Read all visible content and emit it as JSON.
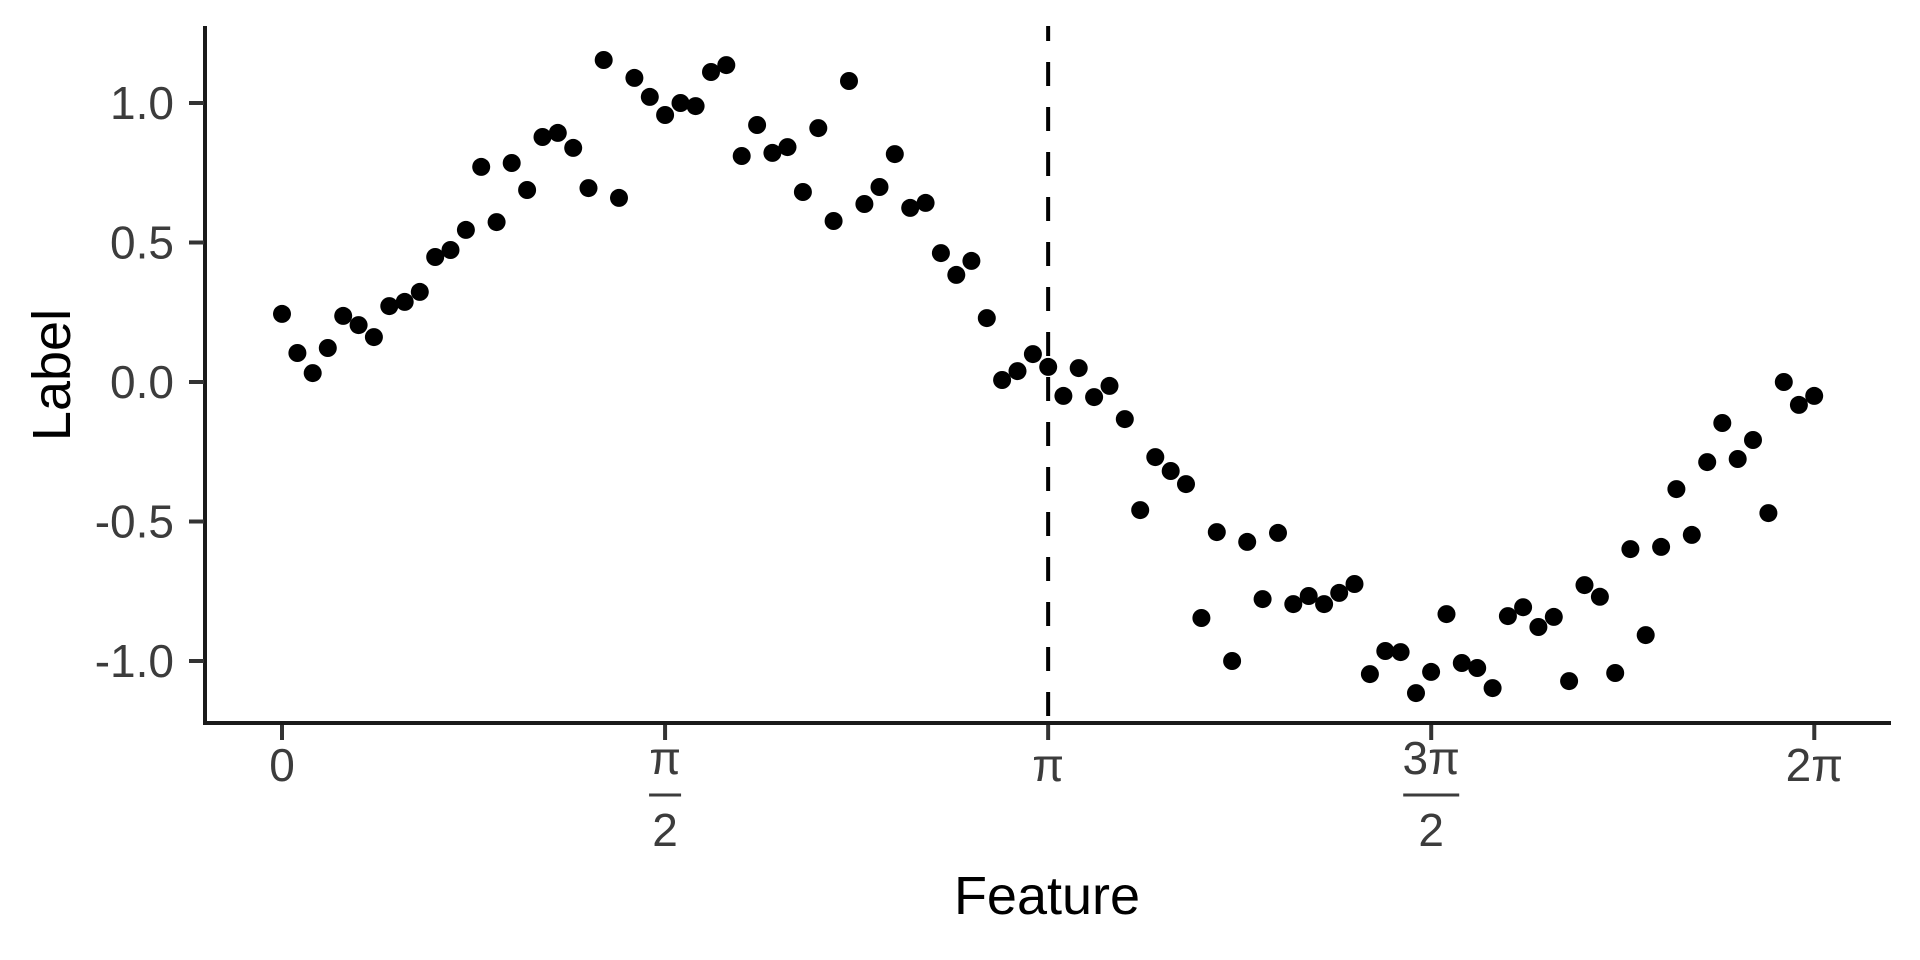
{
  "figure": {
    "background": "#ffffff"
  },
  "chart_data": {
    "type": "scatter",
    "title": "",
    "xlabel": "Feature",
    "ylabel": "Label",
    "xlim": [
      -0.32,
      6.6
    ],
    "ylim": [
      -1.23,
      1.27
    ],
    "grid": false,
    "legend": "none",
    "point_color": "#000000",
    "axis_line_color": "#1a1a1a",
    "tick_color": "#333333",
    "tick_text_color": "#3c3c3c",
    "reference_line": {
      "x": 3.1416,
      "style": "dashed",
      "color": "#000000",
      "at_label": "π"
    },
    "x_ticks": [
      {
        "value": 0,
        "label": "0"
      },
      {
        "value": 1.5708,
        "label": "π/2",
        "num": "π",
        "den": "2"
      },
      {
        "value": 3.1416,
        "label": "π"
      },
      {
        "value": 4.7124,
        "label": "3π/2",
        "num": "3π",
        "den": "2"
      },
      {
        "value": 6.2832,
        "label": "2π"
      }
    ],
    "y_ticks": [
      {
        "value": 1.0,
        "label": "1.0"
      },
      {
        "value": 0.5,
        "label": "0.5"
      },
      {
        "value": 0.0,
        "label": "0.0"
      },
      {
        "value": -0.5,
        "label": "-0.5"
      },
      {
        "value": -1.0,
        "label": "-1.0"
      }
    ],
    "points": [
      [
        0.0,
        0.244
      ],
      [
        0.063,
        0.104
      ],
      [
        0.126,
        0.032
      ],
      [
        0.188,
        0.122
      ],
      [
        0.251,
        0.237
      ],
      [
        0.314,
        0.204
      ],
      [
        0.377,
        0.161
      ],
      [
        0.44,
        0.272
      ],
      [
        0.503,
        0.287
      ],
      [
        0.565,
        0.323
      ],
      [
        0.628,
        0.448
      ],
      [
        0.691,
        0.473
      ],
      [
        0.754,
        0.545
      ],
      [
        0.817,
        0.771
      ],
      [
        0.88,
        0.573
      ],
      [
        0.942,
        0.785
      ],
      [
        1.005,
        0.688
      ],
      [
        1.068,
        0.878
      ],
      [
        1.131,
        0.893
      ],
      [
        1.194,
        0.839
      ],
      [
        1.257,
        0.695
      ],
      [
        1.319,
        1.154
      ],
      [
        1.382,
        0.66
      ],
      [
        1.445,
        1.09
      ],
      [
        1.508,
        1.022
      ],
      [
        1.571,
        0.957
      ],
      [
        1.634,
        1.0
      ],
      [
        1.696,
        0.989
      ],
      [
        1.759,
        1.111
      ],
      [
        1.822,
        1.136
      ],
      [
        1.885,
        0.81
      ],
      [
        1.948,
        0.921
      ],
      [
        2.011,
        0.821
      ],
      [
        2.073,
        0.842
      ],
      [
        2.136,
        0.681
      ],
      [
        2.199,
        0.91
      ],
      [
        2.262,
        0.577
      ],
      [
        2.325,
        1.079
      ],
      [
        2.388,
        0.638
      ],
      [
        2.45,
        0.699
      ],
      [
        2.513,
        0.817
      ],
      [
        2.576,
        0.624
      ],
      [
        2.639,
        0.642
      ],
      [
        2.702,
        0.462
      ],
      [
        2.765,
        0.384
      ],
      [
        2.827,
        0.434
      ],
      [
        2.89,
        0.229
      ],
      [
        2.953,
        0.007
      ],
      [
        3.016,
        0.039
      ],
      [
        3.079,
        0.1
      ],
      [
        3.142,
        0.054
      ],
      [
        3.204,
        -0.05
      ],
      [
        3.267,
        0.05
      ],
      [
        3.33,
        -0.054
      ],
      [
        3.393,
        -0.014
      ],
      [
        3.456,
        -0.133
      ],
      [
        3.519,
        -0.459
      ],
      [
        3.581,
        -0.269
      ],
      [
        3.644,
        -0.319
      ],
      [
        3.707,
        -0.366
      ],
      [
        3.77,
        -0.846
      ],
      [
        3.833,
        -0.538
      ],
      [
        3.896,
        -1.0
      ],
      [
        3.958,
        -0.573
      ],
      [
        4.021,
        -0.778
      ],
      [
        4.084,
        -0.541
      ],
      [
        4.147,
        -0.796
      ],
      [
        4.21,
        -0.767
      ],
      [
        4.273,
        -0.796
      ],
      [
        4.335,
        -0.756
      ],
      [
        4.398,
        -0.724
      ],
      [
        4.461,
        -1.047
      ],
      [
        4.524,
        -0.964
      ],
      [
        4.587,
        -0.968
      ],
      [
        4.65,
        -1.115
      ],
      [
        4.712,
        -1.039
      ],
      [
        4.775,
        -0.832
      ],
      [
        4.838,
        -1.007
      ],
      [
        4.901,
        -1.025
      ],
      [
        4.964,
        -1.097
      ],
      [
        5.027,
        -0.839
      ],
      [
        5.089,
        -0.807
      ],
      [
        5.152,
        -0.878
      ],
      [
        5.215,
        -0.842
      ],
      [
        5.278,
        -1.072
      ],
      [
        5.341,
        -0.728
      ],
      [
        5.404,
        -0.77
      ],
      [
        5.467,
        -1.043
      ],
      [
        5.529,
        -0.599
      ],
      [
        5.592,
        -0.907
      ],
      [
        5.655,
        -0.591
      ],
      [
        5.718,
        -0.384
      ],
      [
        5.781,
        -0.548
      ],
      [
        5.844,
        -0.287
      ],
      [
        5.906,
        -0.147
      ],
      [
        5.969,
        -0.276
      ],
      [
        6.032,
        -0.208
      ],
      [
        6.095,
        -0.47
      ],
      [
        6.158,
        0.0
      ],
      [
        6.22,
        -0.082
      ],
      [
        6.283,
        -0.05
      ]
    ]
  }
}
